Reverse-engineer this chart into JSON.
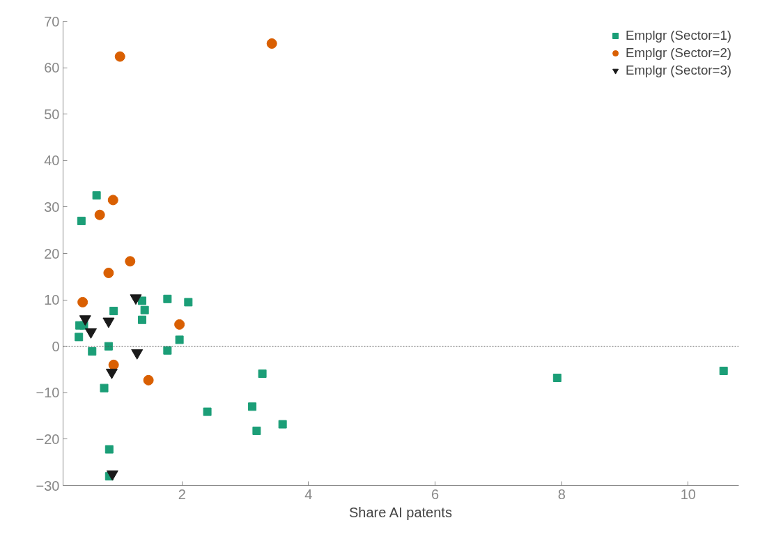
{
  "chart_data": {
    "type": "scatter",
    "xlabel": "Share AI patents",
    "xlim": [
      0.12,
      10.8
    ],
    "ylim": [
      -30,
      70
    ],
    "xticks": [
      2,
      4,
      6,
      8,
      10
    ],
    "yticks": [
      -30,
      -20,
      -10,
      0,
      10,
      20,
      30,
      40,
      50,
      60,
      70
    ],
    "grid": false,
    "legend": "top right",
    "ref_lines": [
      {
        "axis": "y",
        "value": 0,
        "color": "#555555",
        "line_style": "dotted"
      }
    ],
    "series": [
      {
        "name": "Emplgr (Sector=1)",
        "color": "#1b9e77",
        "marker": "square",
        "x": [
          0.41,
          0.65,
          0.38,
          0.45,
          0.37,
          0.58,
          0.84,
          0.92,
          0.77,
          0.85,
          0.85,
          1.37,
          1.41,
          1.37,
          1.77,
          2.1,
          1.96,
          1.77,
          2.4,
          3.11,
          3.18,
          3.27,
          3.59,
          7.93,
          10.56
        ],
        "values": [
          27.0,
          32.5,
          4.5,
          4.5,
          2.0,
          -1.1,
          0.0,
          7.6,
          -9.0,
          -22.2,
          -28.0,
          9.8,
          7.8,
          5.7,
          10.2,
          9.5,
          1.4,
          -0.9,
          -14.1,
          -13.0,
          -18.2,
          -5.9,
          -16.8,
          -6.8,
          -5.3
        ]
      },
      {
        "name": "Emplgr (Sector=2)",
        "color": "#d95f02",
        "marker": "circle",
        "x": [
          1.02,
          3.42,
          0.91,
          0.7,
          0.84,
          1.18,
          0.43,
          1.96,
          0.92,
          1.47
        ],
        "values": [
          62.4,
          65.2,
          31.5,
          28.3,
          15.8,
          18.3,
          9.5,
          4.7,
          -4.0,
          -7.3
        ]
      },
      {
        "name": "Emplgr (Sector=3)",
        "color": "#1a1a1a",
        "marker": "triangle",
        "x": [
          0.47,
          0.56,
          0.84,
          1.27,
          1.29,
          0.89,
          0.9
        ],
        "values": [
          5.9,
          3.1,
          5.4,
          10.4,
          -1.4,
          -5.6,
          -27.5
        ]
      }
    ]
  }
}
